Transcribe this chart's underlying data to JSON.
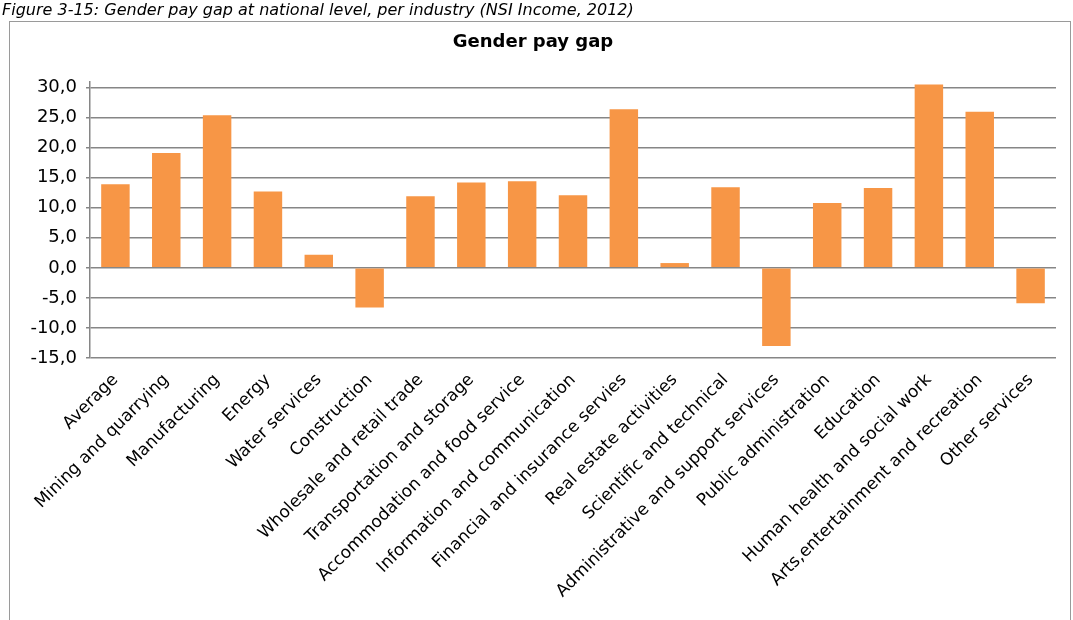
{
  "chart_data": {
    "type": "bar",
    "title": "Gender pay gap",
    "annotations": [
      "Figure 3-15: Gender pay gap at national level, per industry (NSI Income, 2012)"
    ],
    "categories": [
      "Average",
      "Mining and quarrying",
      "Manufacturing",
      "Energy",
      "Water services",
      "Construction",
      "Wholesale and retail trade",
      "Transportation and storage",
      "Accommodation and food service",
      "Information and communication",
      "Financial and insurance servies",
      "Real estate activities",
      "Scientific and technical",
      "Administrative and support services",
      "Public administration",
      "Education",
      "Human health and social work",
      "Arts,entertainment and recreation",
      "Other services"
    ],
    "values": [
      13.9,
      19.1,
      25.4,
      12.7,
      2.2,
      -6.6,
      11.9,
      14.2,
      14.4,
      12.1,
      26.4,
      0.8,
      13.4,
      -13.0,
      10.8,
      13.3,
      30.5,
      26.0,
      -5.9
    ],
    "color": "#f79646",
    "ylim": [
      -15,
      31
    ],
    "yticks": [
      {
        "value": -15,
        "label": "-15,0"
      },
      {
        "value": -10,
        "label": "-10,0"
      },
      {
        "value": -5,
        "label": "-5,0"
      },
      {
        "value": 0,
        "label": "0,0"
      },
      {
        "value": 5,
        "label": "5,0"
      },
      {
        "value": 10,
        "label": "10,0"
      },
      {
        "value": 15,
        "label": "15,0"
      },
      {
        "value": 20,
        "label": "20,0"
      },
      {
        "value": 25,
        "label": "25,0"
      },
      {
        "value": 30,
        "label": "30,0"
      }
    ],
    "grid": "y"
  }
}
